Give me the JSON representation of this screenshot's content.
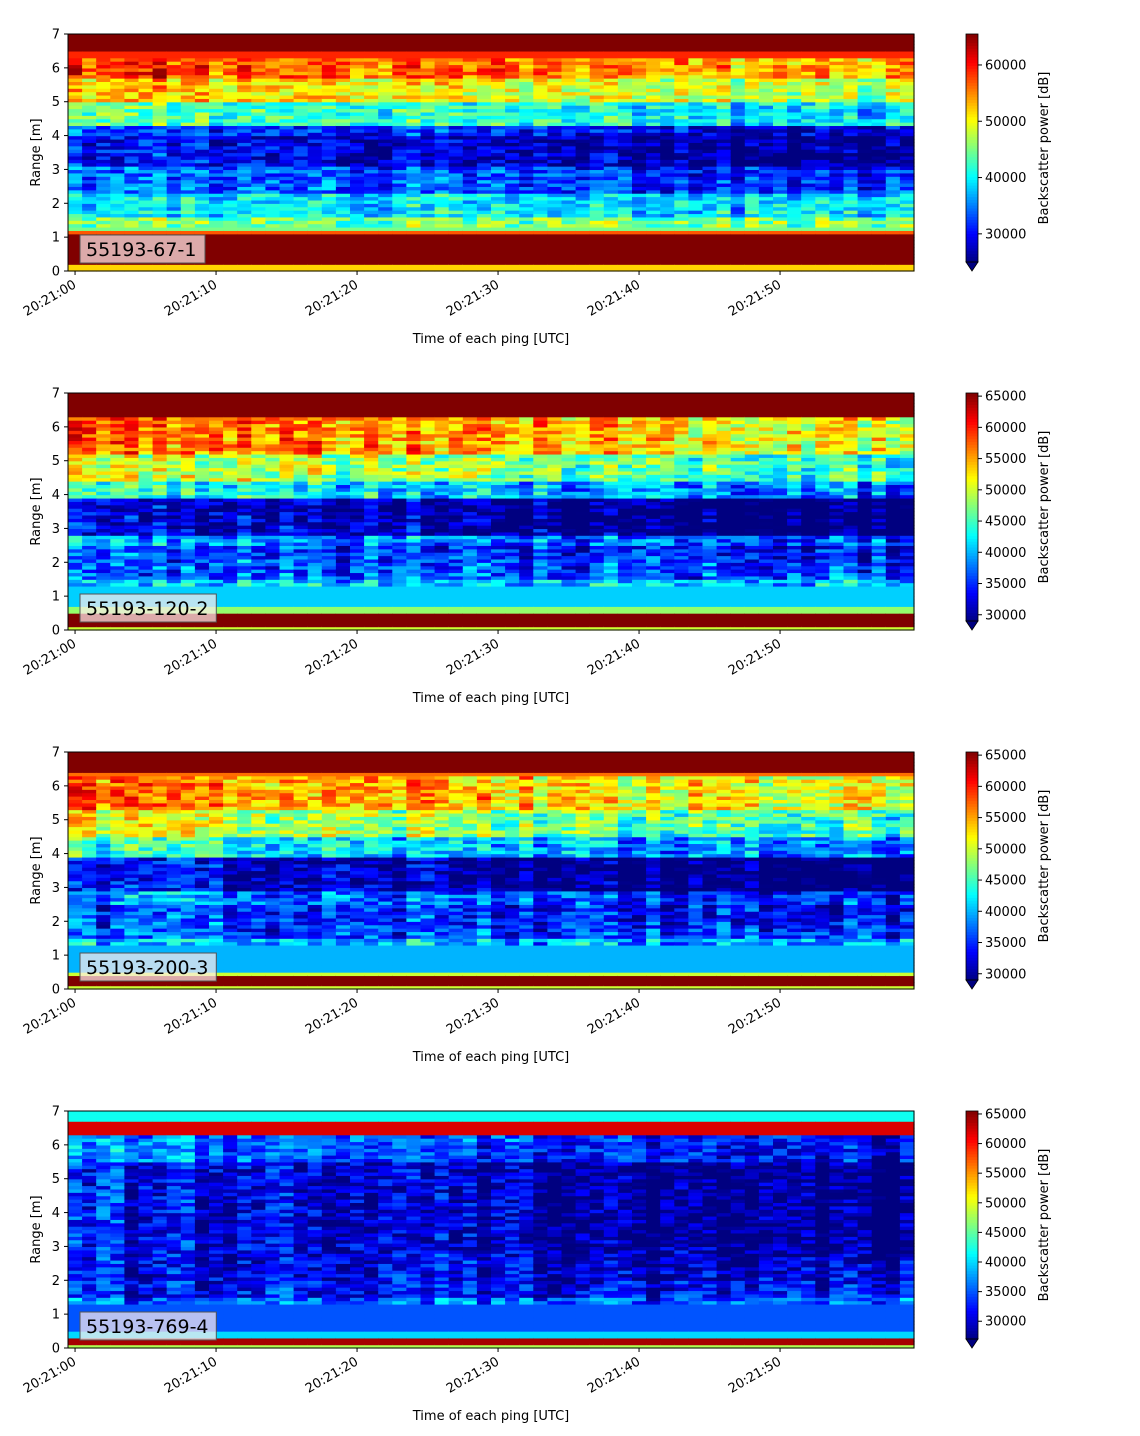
{
  "chart_data": [
    {
      "type": "heatmap",
      "panel_label": "55193-67-1",
      "xlabel": "Time of each ping [UTC]",
      "ylabel": "Range [m]",
      "x_range": [
        "20:20:59.5",
        "20:21:59.5"
      ],
      "xticks": [
        "20:21:00",
        "20:21:10",
        "20:21:20",
        "20:21:30",
        "20:21:40",
        "20:21:50"
      ],
      "ylim": [
        0,
        7
      ],
      "yticks": [
        "0",
        "1",
        "2",
        "3",
        "4",
        "5",
        "6",
        "7"
      ],
      "colorbar": {
        "label": "Backscatter power [dB]",
        "colormap": "jet",
        "vmin": 25000,
        "vmax": 65500,
        "extend": "min",
        "ticks": [
          "30000",
          "40000",
          "50000",
          "60000"
        ]
      },
      "bands": [
        {
          "from": 0.0,
          "to": 0.2,
          "value": 52000
        },
        {
          "from": 0.2,
          "to": 1.1,
          "value": 65500
        },
        {
          "from": 1.1,
          "to": 1.25,
          "value": 57000
        },
        {
          "from": 1.25,
          "to": 1.6,
          "value": 45000
        },
        {
          "from": 1.6,
          "to": 2.3,
          "value": 40000
        },
        {
          "from": 2.3,
          "to": 3.1,
          "value": 35000
        },
        {
          "from": 3.1,
          "to": 4.0,
          "value": 31000
        },
        {
          "from": 4.0,
          "to": 4.3,
          "value": 34000
        },
        {
          "from": 4.3,
          "to": 5.0,
          "value": 45000
        },
        {
          "from": 5.0,
          "to": 5.7,
          "value": 53000
        },
        {
          "from": 5.7,
          "to": 6.5,
          "value": 59000
        },
        {
          "from": 6.5,
          "to": 7.0,
          "value": 65500
        }
      ]
    },
    {
      "type": "heatmap",
      "panel_label": "55193-120-2",
      "xlabel": "Time of each ping [UTC]",
      "ylabel": "Range [m]",
      "x_range": [
        "20:20:59.5",
        "20:21:59.5"
      ],
      "xticks": [
        "20:21:00",
        "20:21:10",
        "20:21:20",
        "20:21:30",
        "20:21:40",
        "20:21:50"
      ],
      "ylim": [
        0,
        7
      ],
      "yticks": [
        "0",
        "1",
        "2",
        "3",
        "4",
        "5",
        "6",
        "7"
      ],
      "colorbar": {
        "label": "Backscatter power [dB]",
        "colormap": "jet",
        "vmin": 29000,
        "vmax": 65500,
        "extend": "min",
        "ticks": [
          "30000",
          "35000",
          "40000",
          "45000",
          "50000",
          "55000",
          "60000",
          "65000"
        ]
      },
      "bands": [
        {
          "from": 0.0,
          "to": 0.12,
          "value": 50000
        },
        {
          "from": 0.12,
          "to": 0.55,
          "value": 65500
        },
        {
          "from": 0.55,
          "to": 0.7,
          "value": 48000
        },
        {
          "from": 0.7,
          "to": 1.5,
          "value": 41000
        },
        {
          "from": 1.5,
          "to": 2.5,
          "value": 37000
        },
        {
          "from": 2.5,
          "to": 2.8,
          "value": 40000
        },
        {
          "from": 2.8,
          "to": 3.9,
          "value": 33000
        },
        {
          "from": 3.9,
          "to": 4.4,
          "value": 44000
        },
        {
          "from": 4.4,
          "to": 5.2,
          "value": 51000
        },
        {
          "from": 5.2,
          "to": 6.3,
          "value": 58000
        },
        {
          "from": 6.3,
          "to": 7.0,
          "value": 65500
        }
      ]
    },
    {
      "type": "heatmap",
      "panel_label": "55193-200-3",
      "xlabel": "Time of each ping [UTC]",
      "ylabel": "Range [m]",
      "x_range": [
        "20:20:59.5",
        "20:21:59.5"
      ],
      "xticks": [
        "20:21:00",
        "20:21:10",
        "20:21:20",
        "20:21:30",
        "20:21:40",
        "20:21:50"
      ],
      "ylim": [
        0,
        7
      ],
      "yticks": [
        "0",
        "1",
        "2",
        "3",
        "4",
        "5",
        "6",
        "7"
      ],
      "colorbar": {
        "label": "Backscatter power [dB]",
        "colormap": "jet",
        "vmin": 29000,
        "vmax": 65500,
        "extend": "min",
        "ticks": [
          "30000",
          "35000",
          "40000",
          "45000",
          "50000",
          "55000",
          "60000",
          "65000"
        ]
      },
      "bands": [
        {
          "from": 0.0,
          "to": 0.12,
          "value": 50000
        },
        {
          "from": 0.12,
          "to": 0.4,
          "value": 65500
        },
        {
          "from": 0.4,
          "to": 0.55,
          "value": 50000
        },
        {
          "from": 0.55,
          "to": 1.5,
          "value": 40000
        },
        {
          "from": 1.5,
          "to": 2.5,
          "value": 36000
        },
        {
          "from": 2.5,
          "to": 2.9,
          "value": 39000
        },
        {
          "from": 2.9,
          "to": 3.9,
          "value": 33000
        },
        {
          "from": 3.9,
          "to": 4.5,
          "value": 44000
        },
        {
          "from": 4.5,
          "to": 5.3,
          "value": 51000
        },
        {
          "from": 5.3,
          "to": 6.4,
          "value": 57000
        },
        {
          "from": 6.4,
          "to": 7.0,
          "value": 65500
        }
      ]
    },
    {
      "type": "heatmap",
      "panel_label": "55193-769-4",
      "xlabel": "Time of each ping [UTC]",
      "ylabel": "Range [m]",
      "x_range": [
        "20:20:59.5",
        "20:21:59.5"
      ],
      "xticks": [
        "20:21:00",
        "20:21:10",
        "20:21:20",
        "20:21:30",
        "20:21:40",
        "20:21:50"
      ],
      "ylim": [
        0,
        7
      ],
      "yticks": [
        "0",
        "1",
        "2",
        "3",
        "4",
        "5",
        "6",
        "7"
      ],
      "colorbar": {
        "label": "Backscatter power [dB]",
        "colormap": "jet",
        "vmin": 27000,
        "vmax": 65500,
        "extend": "min",
        "ticks": [
          "30000",
          "35000",
          "40000",
          "45000",
          "50000",
          "55000",
          "60000",
          "65000"
        ]
      },
      "bands": [
        {
          "from": 0.0,
          "to": 0.1,
          "value": 48000
        },
        {
          "from": 0.1,
          "to": 0.3,
          "value": 64000
        },
        {
          "from": 0.3,
          "to": 0.5,
          "value": 40000
        },
        {
          "from": 0.5,
          "to": 1.5,
          "value": 35000
        },
        {
          "from": 1.5,
          "to": 5.5,
          "value": 32000
        },
        {
          "from": 5.5,
          "to": 6.3,
          "value": 37000
        },
        {
          "from": 6.3,
          "to": 6.7,
          "value": 62000
        },
        {
          "from": 6.7,
          "to": 7.0,
          "value": 42000
        }
      ]
    }
  ]
}
